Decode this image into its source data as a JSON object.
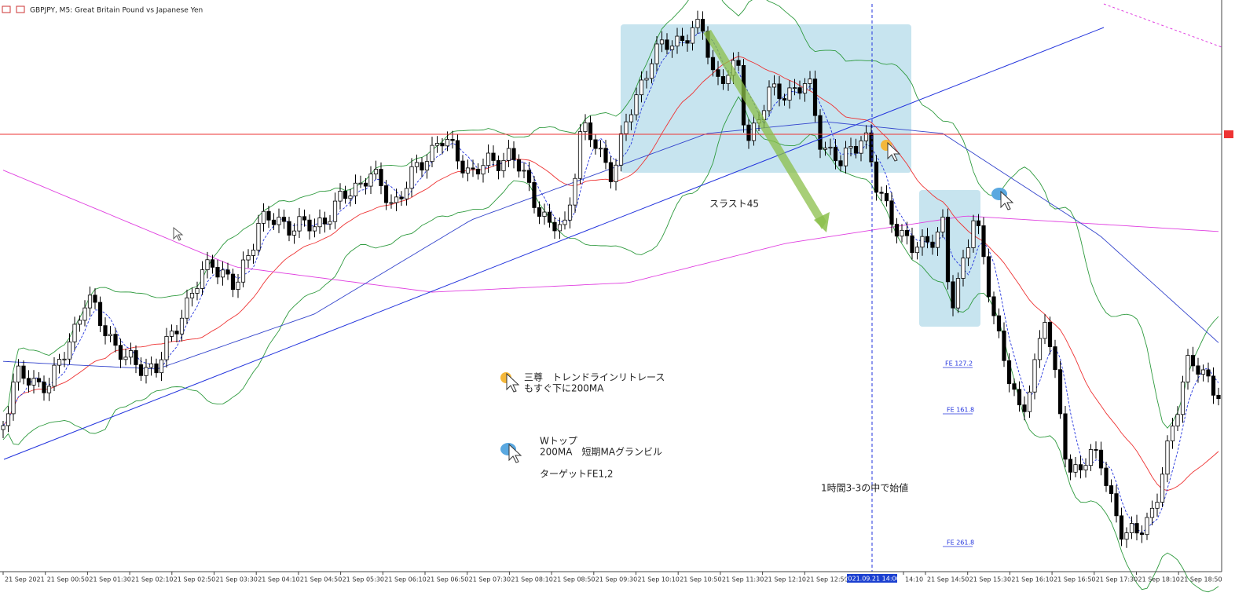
{
  "header": {
    "title": "GBPJPY, M5:  Great Britain Pound vs Japanese Yen"
  },
  "annotations": {
    "thrust": "スラスト45",
    "head_shoulders_1": "三尊　トレンドラインリトレース",
    "head_shoulders_2": "もすぐ下に200MA",
    "double_top_1": "Wトップ",
    "double_top_2": "200MA　短期MAグランビル",
    "double_top_3": "ターゲットFE1,2",
    "hour_note": "1時間3-3の中で始値"
  },
  "fibo_labels": [
    "FE  127.2",
    "FE  161.8",
    "FE  261.8"
  ],
  "time_axis": {
    "labels": [
      "21 Sep 2021",
      "21 Sep 00:50",
      "21 Sep 01:30",
      "21 Sep 02:10",
      "21 Sep 02:50",
      "21 Sep 03:30",
      "21 Sep 04:10",
      "21 Sep 04:50",
      "21 Sep 05:30",
      "21 Sep 06:10",
      "21 Sep 06:50",
      "21 Sep 07:30",
      "21 Sep 08:10",
      "21 Sep 08:50",
      "21 Sep 09:30",
      "21 Sep 10:10",
      "21 Sep 10:50",
      "21 Sep 11:30",
      "21 Sep 12:10",
      "21 Sep 12:50",
      "14:10",
      "21 Sep 14:50",
      "21 Sep 15:30",
      "21 Sep 16:10",
      "21 Sep 16:50",
      "21 Sep 17:30",
      "21 Sep 18:10",
      "21 Sep 18:50"
    ],
    "cursor_label": "2021.09.21 14:00"
  }
}
